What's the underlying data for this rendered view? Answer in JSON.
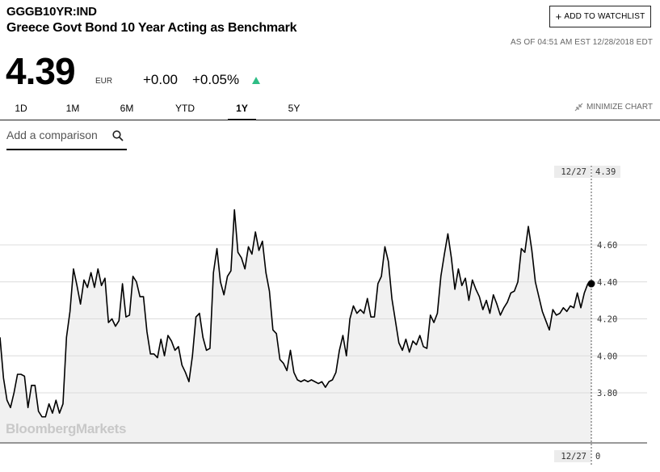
{
  "header": {
    "ticker": "GGGB10YR:IND",
    "name": "Greece Govt Bond 10 Year Acting as Benchmark",
    "watchlist_button": "ADD TO WATCHLIST",
    "as_of": "AS OF 04:51 AM EST 12/28/2018 EDT"
  },
  "quote": {
    "price": "4.39",
    "currency": "EUR",
    "change": "+0.00",
    "change_pct": "+0.05%",
    "direction_color": "#2ebd85"
  },
  "ranges": {
    "tabs": [
      "1D",
      "1M",
      "6M",
      "YTD",
      "1Y",
      "5Y"
    ],
    "active": "1Y",
    "minimize_label": "MINIMIZE CHART"
  },
  "compare": {
    "placeholder": "Add a comparison"
  },
  "chart_data": {
    "type": "area",
    "series": [
      {
        "values": [
          4.1,
          3.88,
          3.76,
          3.72,
          3.8,
          3.9,
          3.9,
          3.89,
          3.72,
          3.84,
          3.84,
          3.7,
          3.67,
          3.67,
          3.74,
          3.69,
          3.76,
          3.69,
          3.74,
          4.1,
          4.24,
          4.47,
          4.38,
          4.28,
          4.41,
          4.37,
          4.45,
          4.37,
          4.47,
          4.38,
          4.42,
          4.18,
          4.2,
          4.16,
          4.19,
          4.39,
          4.21,
          4.22,
          4.43,
          4.4,
          4.32,
          4.32,
          4.13,
          4.01,
          4.01,
          3.99,
          4.09,
          4.0,
          4.11,
          4.08,
          4.03,
          4.05,
          3.95,
          3.91,
          3.86,
          4.0,
          4.21,
          4.23,
          4.1,
          4.03,
          4.04,
          4.45,
          4.58,
          4.4,
          4.33,
          4.43,
          4.46,
          4.79,
          4.56,
          4.53,
          4.47,
          4.59,
          4.55,
          4.67,
          4.57,
          4.62,
          4.45,
          4.35,
          4.14,
          4.12,
          3.98,
          3.96,
          3.92,
          4.03,
          3.91,
          3.87,
          3.86,
          3.87,
          3.86,
          3.87,
          3.86,
          3.85,
          3.86,
          3.83,
          3.86,
          3.87,
          3.91,
          4.03,
          4.11,
          4.0,
          4.2,
          4.27,
          4.23,
          4.25,
          4.23,
          4.31,
          4.21,
          4.21,
          4.39,
          4.43,
          4.59,
          4.51,
          4.31,
          4.19,
          4.07,
          4.03,
          4.09,
          4.02,
          4.08,
          4.06,
          4.11,
          4.05,
          4.04,
          4.22,
          4.18,
          4.23,
          4.43,
          4.55,
          4.66,
          4.53,
          4.36,
          4.47,
          4.38,
          4.42,
          4.3,
          4.41,
          4.36,
          4.32,
          4.25,
          4.3,
          4.23,
          4.33,
          4.28,
          4.22,
          4.26,
          4.29,
          4.34,
          4.35,
          4.4,
          4.58,
          4.56,
          4.7,
          4.57,
          4.4,
          4.32,
          4.24,
          4.19,
          4.14,
          4.25,
          4.22,
          4.23,
          4.26,
          4.24,
          4.27,
          4.26,
          4.34,
          4.26,
          4.34,
          4.39,
          4.39
        ]
      }
    ],
    "xlabel": "",
    "ylabel": "",
    "ylim": [
      3.63,
      4.82
    ],
    "yticks": [
      "4.60",
      "4.40",
      "4.20",
      "4.00",
      "3.80"
    ],
    "ytick_values": [
      4.6,
      4.4,
      4.2,
      4.0,
      3.8
    ],
    "last_value": "4.39",
    "crosshair_date": "12/27",
    "crosshair_x_value": "0",
    "grid": "horizontal",
    "area_color": "#f1f1f1",
    "line_color": "#000000",
    "watermark": "BloombergMarkets"
  }
}
